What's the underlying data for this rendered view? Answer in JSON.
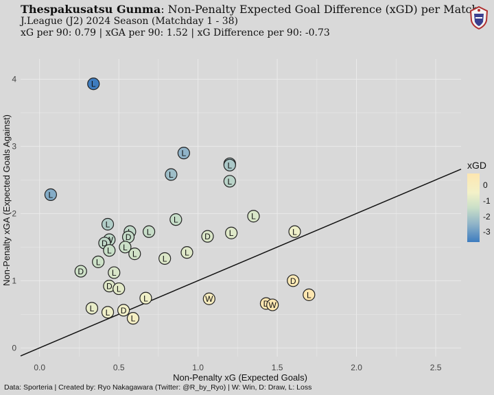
{
  "header": {
    "team": "Thespakusatsu Gunma",
    "title_rest": ": Non-Penalty Expected Goal Difference (xGD) per Match",
    "subtitle": "J.League (J2) 2024 Season (Matchday 1 - 38)",
    "stats": "xG per 90: 0.79 | xGA per 90: 1.52 | xG Difference per 90: -0.73"
  },
  "caption": "Data: Sporteria | Created by: Ryo Nakagawara (Twitter: @R_by_Ryo) | W: Win, D: Draw, L: Loss",
  "logo": {
    "icon": "club-crest-icon"
  },
  "legend": {
    "title": "xGD",
    "ticks": [
      "0",
      "-1",
      "-2",
      "-3"
    ],
    "tick_values": [
      0,
      -1,
      -2,
      -3
    ],
    "colors": {
      "high": "#fde6b0",
      "mid": "#f3f1c8",
      "low": "#3d7cbf"
    }
  },
  "chart_data": {
    "type": "scatter",
    "xlabel": "Non-Penalty xG (Expected Goals)",
    "ylabel": "Non-Penalty xGA (Expected Goals Against)",
    "xlim": [
      -0.12,
      2.66
    ],
    "ylim": [
      -0.13,
      4.3
    ],
    "xticks": [
      0.0,
      0.5,
      1.0,
      1.5,
      2.0,
      2.5
    ],
    "xtick_labels": [
      "0.0",
      "0.5",
      "1.0",
      "1.5",
      "2.0",
      "2.5"
    ],
    "yticks": [
      0,
      1,
      2,
      3,
      4
    ],
    "ytick_labels": [
      "0",
      "1",
      "2",
      "3",
      "4"
    ],
    "grid": true,
    "reference_line": "y = x",
    "points": [
      {
        "x": 0.34,
        "y": 3.93,
        "r": "L"
      },
      {
        "x": 0.07,
        "y": 2.28,
        "r": "L"
      },
      {
        "x": 0.91,
        "y": 2.9,
        "r": "L"
      },
      {
        "x": 1.2,
        "y": 2.74,
        "r": "D"
      },
      {
        "x": 1.2,
        "y": 2.72,
        "r": "L"
      },
      {
        "x": 0.83,
        "y": 2.58,
        "r": "L"
      },
      {
        "x": 1.2,
        "y": 2.48,
        "r": "L"
      },
      {
        "x": 0.86,
        "y": 1.91,
        "r": "L"
      },
      {
        "x": 1.35,
        "y": 1.96,
        "r": "L"
      },
      {
        "x": 0.43,
        "y": 1.84,
        "r": "L"
      },
      {
        "x": 0.57,
        "y": 1.73,
        "r": "L"
      },
      {
        "x": 0.69,
        "y": 1.73,
        "r": "L"
      },
      {
        "x": 1.61,
        "y": 1.73,
        "r": "L"
      },
      {
        "x": 1.21,
        "y": 1.71,
        "r": "L"
      },
      {
        "x": 1.06,
        "y": 1.66,
        "r": "D"
      },
      {
        "x": 0.56,
        "y": 1.65,
        "r": "D"
      },
      {
        "x": 0.44,
        "y": 1.61,
        "r": "W"
      },
      {
        "x": 0.41,
        "y": 1.56,
        "r": "D"
      },
      {
        "x": 0.44,
        "y": 1.45,
        "r": "L"
      },
      {
        "x": 0.54,
        "y": 1.5,
        "r": "L"
      },
      {
        "x": 0.6,
        "y": 1.4,
        "r": "L"
      },
      {
        "x": 0.93,
        "y": 1.42,
        "r": "L"
      },
      {
        "x": 0.79,
        "y": 1.33,
        "r": "L"
      },
      {
        "x": 0.37,
        "y": 1.28,
        "r": "L"
      },
      {
        "x": 0.26,
        "y": 1.14,
        "r": "D"
      },
      {
        "x": 0.47,
        "y": 1.12,
        "r": "L"
      },
      {
        "x": 0.44,
        "y": 0.92,
        "r": "D"
      },
      {
        "x": 0.5,
        "y": 0.88,
        "r": "L"
      },
      {
        "x": 1.6,
        "y": 1.0,
        "r": "D"
      },
      {
        "x": 1.7,
        "y": 0.79,
        "r": "L"
      },
      {
        "x": 0.67,
        "y": 0.74,
        "r": "L"
      },
      {
        "x": 1.07,
        "y": 0.73,
        "r": "W"
      },
      {
        "x": 1.43,
        "y": 0.66,
        "r": "D"
      },
      {
        "x": 1.47,
        "y": 0.64,
        "r": "W"
      },
      {
        "x": 0.33,
        "y": 0.59,
        "r": "L"
      },
      {
        "x": 0.53,
        "y": 0.56,
        "r": "D"
      },
      {
        "x": 0.43,
        "y": 0.53,
        "r": "L"
      },
      {
        "x": 0.59,
        "y": 0.44,
        "r": "L"
      }
    ]
  }
}
